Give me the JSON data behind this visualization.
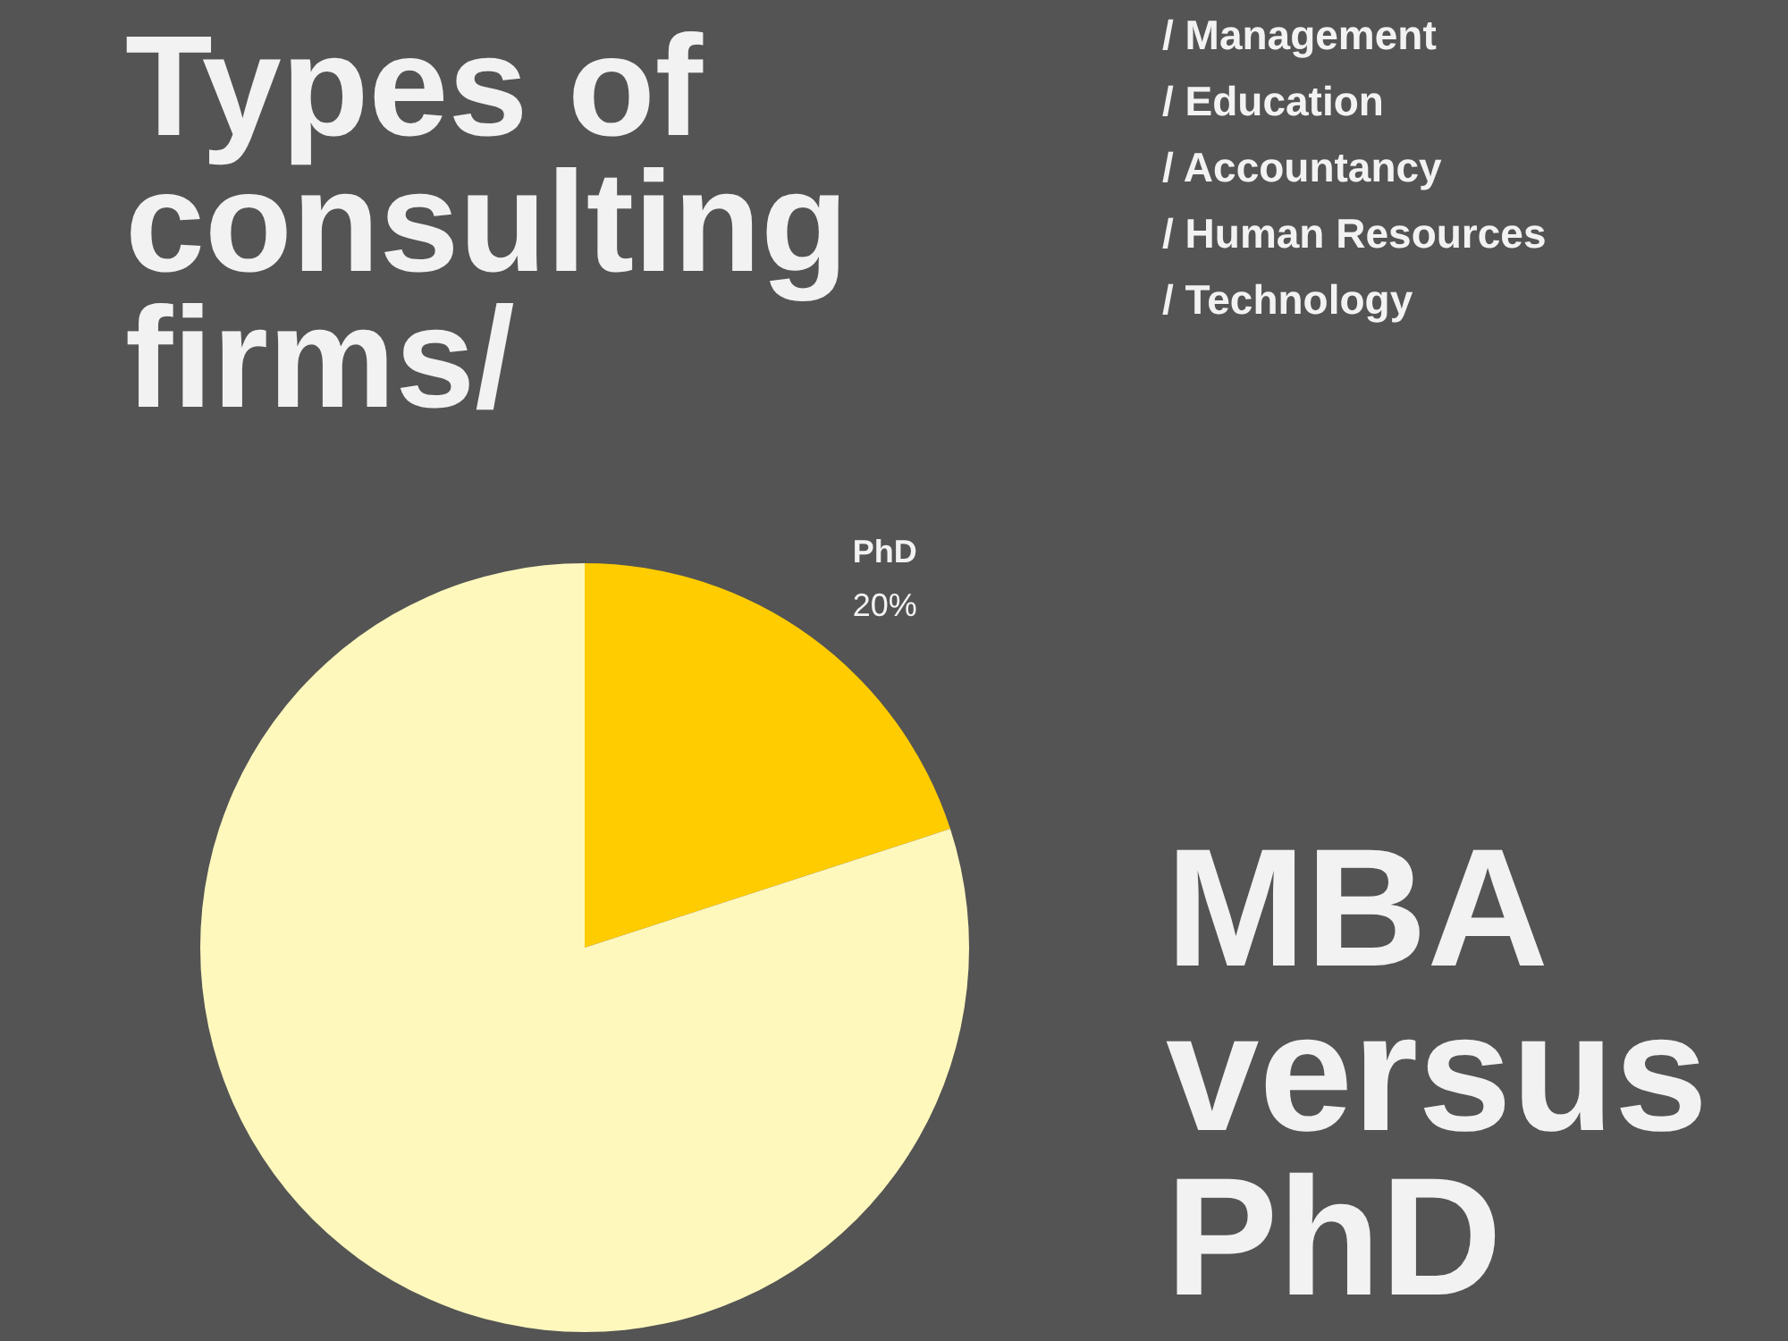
{
  "chart_data": {
    "type": "pie",
    "title": "Types of consulting firms/",
    "subtitle": "MBA versus PhD",
    "annotations": [
      "/ Management",
      "/ Education",
      "/ Accountancy",
      "/ Human Resources",
      "/ Technology"
    ],
    "categories": [
      "PhD",
      null
    ],
    "values": [
      20,
      80
    ],
    "colors": [
      "#ffcc00",
      "#fff8bd"
    ],
    "value_labels": [
      "20%",
      null
    ]
  }
}
